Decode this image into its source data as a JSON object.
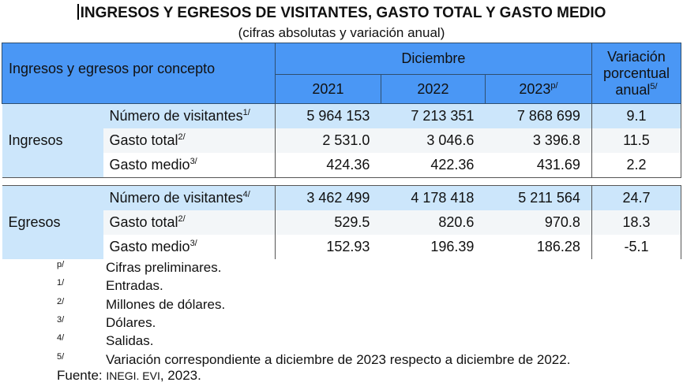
{
  "title": "INGRESOS Y EGRESOS DE VISITANTES, GASTO TOTAL Y GASTO MEDIO",
  "subtitle": "(cifras absolutas y variación anual)",
  "header": {
    "concept": "Ingresos y egresos por concepto",
    "period": "Diciembre",
    "years": [
      "2021",
      "2022",
      "2023"
    ],
    "year_2023_note": "p/",
    "variation": [
      "Variación",
      "porcentual",
      "anual"
    ],
    "variation_note": "5/"
  },
  "groups": [
    {
      "label": "Ingresos",
      "rows": [
        {
          "concept": "Número de visitantes",
          "note": "1/",
          "v2021": "5 964 153",
          "v2022": "7 213 351",
          "v2023": "7 868 699",
          "var": "9.1"
        },
        {
          "concept": "Gasto total",
          "note": "2/",
          "v2021": "2 531.0",
          "v2022": "3 046.6",
          "v2023": "3 396.8",
          "var": "11.5"
        },
        {
          "concept": "Gasto medio",
          "note": "3/",
          "v2021": "424.36",
          "v2022": "422.36",
          "v2023": "431.69",
          "var": "2.2"
        }
      ]
    },
    {
      "label": "Egresos",
      "rows": [
        {
          "concept": "Número de visitantes",
          "note": "4/",
          "v2021": "3 462 499",
          "v2022": "4 178 418",
          "v2023": "5 211 564",
          "var": "24.7"
        },
        {
          "concept": "Gasto total",
          "note": "2/",
          "v2021": "529.5",
          "v2022": "820.6",
          "v2023": "970.8",
          "var": "18.3"
        },
        {
          "concept": "Gasto medio",
          "note": "3/",
          "v2021": "152.93",
          "v2022": "196.39",
          "v2023": "186.28",
          "var": "-5.1"
        }
      ]
    }
  ],
  "notes": [
    {
      "key": "p/",
      "text": "Cifras preliminares."
    },
    {
      "key": "1/",
      "text": "Entradas."
    },
    {
      "key": "2/",
      "text": "Millones de dólares."
    },
    {
      "key": "3/",
      "text": "Dólares."
    },
    {
      "key": "4/",
      "text": "Salidas."
    },
    {
      "key": "5/",
      "text": "Variación correspondiente a diciembre de 2023 respecto a diciembre de 2022."
    }
  ],
  "source": {
    "label": "Fuente:",
    "org": "INEGI. EVI",
    "year": ", 2023."
  }
}
